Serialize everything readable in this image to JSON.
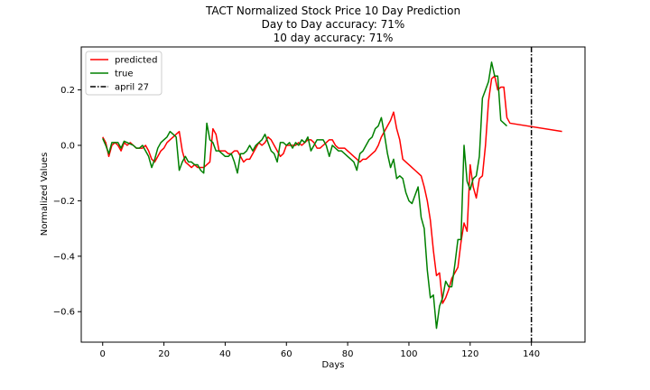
{
  "chart_data": {
    "type": "line",
    "title_lines": [
      "TACT Normalized Stock Price 10 Day Prediction",
      "Day to Day accuracy: 71%",
      "10 day accuracy: 71%"
    ],
    "xlabel": "Days",
    "ylabel": "Normalized Values",
    "xlim": [
      -7,
      157.5
    ],
    "ylim": [
      -0.71,
      0.355
    ],
    "xticks": [
      0,
      20,
      40,
      60,
      80,
      100,
      120,
      140
    ],
    "yticks": [
      -0.6,
      -0.4,
      -0.2,
      0.0,
      0.2
    ],
    "ytick_labels": [
      "−0.6",
      "−0.4",
      "−0.2",
      "0.0",
      "0.2"
    ],
    "grid": false,
    "legend_position": "upper-left",
    "series": [
      {
        "name": "predicted",
        "color": "#ff0000",
        "points": [
          [
            0,
            0.03
          ],
          [
            1,
            0.01
          ],
          [
            2,
            -0.04
          ],
          [
            3,
            0.0
          ],
          [
            4,
            0.01
          ],
          [
            5,
            0.0
          ],
          [
            6,
            -0.02
          ],
          [
            7,
            0.01
          ],
          [
            8,
            0.0
          ],
          [
            9,
            0.01
          ],
          [
            10,
            0.0
          ],
          [
            11,
            -0.01
          ],
          [
            12,
            -0.01
          ],
          [
            13,
            -0.01
          ],
          [
            14,
            0.0
          ],
          [
            15,
            -0.02
          ],
          [
            16,
            -0.05
          ],
          [
            17,
            -0.06
          ],
          [
            18,
            -0.04
          ],
          [
            19,
            -0.02
          ],
          [
            20,
            -0.01
          ],
          [
            21,
            0.01
          ],
          [
            22,
            0.02
          ],
          [
            23,
            0.03
          ],
          [
            24,
            0.04
          ],
          [
            25,
            0.05
          ],
          [
            26,
            -0.02
          ],
          [
            27,
            -0.06
          ],
          [
            28,
            -0.07
          ],
          [
            29,
            -0.08
          ],
          [
            30,
            -0.07
          ],
          [
            31,
            -0.08
          ],
          [
            32,
            -0.08
          ],
          [
            33,
            -0.08
          ],
          [
            34,
            -0.07
          ],
          [
            35,
            -0.06
          ],
          [
            36,
            0.06
          ],
          [
            37,
            0.04
          ],
          [
            38,
            -0.02
          ],
          [
            39,
            -0.02
          ],
          [
            40,
            -0.02
          ],
          [
            41,
            -0.03
          ],
          [
            42,
            -0.03
          ],
          [
            43,
            -0.02
          ],
          [
            44,
            -0.02
          ],
          [
            45,
            -0.04
          ],
          [
            46,
            -0.06
          ],
          [
            47,
            -0.05
          ],
          [
            48,
            -0.05
          ],
          [
            49,
            -0.03
          ],
          [
            50,
            -0.01
          ],
          [
            51,
            0.01
          ],
          [
            52,
            0.0
          ],
          [
            53,
            0.01
          ],
          [
            54,
            0.03
          ],
          [
            55,
            0.02
          ],
          [
            56,
            0.0
          ],
          [
            57,
            -0.02
          ],
          [
            58,
            -0.04
          ],
          [
            59,
            -0.03
          ],
          [
            60,
            0.0
          ],
          [
            61,
            0.0
          ],
          [
            62,
            0.0
          ],
          [
            63,
            0.0
          ],
          [
            64,
            0.01
          ],
          [
            65,
            0.0
          ],
          [
            66,
            0.01
          ],
          [
            67,
            0.02
          ],
          [
            68,
            0.02
          ],
          [
            69,
            0.01
          ],
          [
            70,
            -0.01
          ],
          [
            71,
            -0.01
          ],
          [
            72,
            0.0
          ],
          [
            73,
            0.01
          ],
          [
            74,
            0.02
          ],
          [
            75,
            0.02
          ],
          [
            76,
            0.0
          ],
          [
            77,
            -0.01
          ],
          [
            78,
            -0.01
          ],
          [
            79,
            -0.01
          ],
          [
            80,
            -0.02
          ],
          [
            81,
            -0.03
          ],
          [
            82,
            -0.04
          ],
          [
            83,
            -0.05
          ],
          [
            84,
            -0.06
          ],
          [
            85,
            -0.05
          ],
          [
            86,
            -0.05
          ],
          [
            87,
            -0.04
          ],
          [
            88,
            -0.03
          ],
          [
            89,
            -0.02
          ],
          [
            90,
            0.0
          ],
          [
            91,
            0.03
          ],
          [
            92,
            0.05
          ],
          [
            93,
            0.07
          ],
          [
            94,
            0.09
          ],
          [
            95,
            0.12
          ],
          [
            96,
            0.06
          ],
          [
            97,
            0.02
          ],
          [
            98,
            -0.05
          ],
          [
            99,
            -0.06
          ],
          [
            100,
            -0.07
          ],
          [
            101,
            -0.08
          ],
          [
            102,
            -0.09
          ],
          [
            103,
            -0.1
          ],
          [
            104,
            -0.11
          ],
          [
            105,
            -0.15
          ],
          [
            106,
            -0.2
          ],
          [
            107,
            -0.27
          ],
          [
            108,
            -0.38
          ],
          [
            109,
            -0.47
          ],
          [
            110,
            -0.46
          ],
          [
            111,
            -0.57
          ],
          [
            112,
            -0.55
          ],
          [
            113,
            -0.52
          ],
          [
            114,
            -0.48
          ],
          [
            115,
            -0.46
          ],
          [
            116,
            -0.44
          ],
          [
            117,
            -0.35
          ],
          [
            118,
            -0.28
          ],
          [
            119,
            -0.31
          ],
          [
            120,
            -0.07
          ],
          [
            121,
            -0.15
          ],
          [
            122,
            -0.19
          ],
          [
            123,
            -0.12
          ],
          [
            124,
            -0.11
          ],
          [
            125,
            0.0
          ],
          [
            126,
            0.16
          ],
          [
            127,
            0.24
          ],
          [
            128,
            0.25
          ],
          [
            129,
            0.2
          ],
          [
            130,
            0.21
          ],
          [
            131,
            0.21
          ],
          [
            132,
            0.1
          ],
          [
            133,
            0.08
          ],
          [
            150,
            0.05
          ]
        ]
      },
      {
        "name": "true",
        "color": "#008000",
        "points": [
          [
            0,
            0.025
          ],
          [
            1,
            0.0
          ],
          [
            2,
            -0.03
          ],
          [
            3,
            0.01
          ],
          [
            4,
            0.01
          ],
          [
            5,
            0.01
          ],
          [
            6,
            -0.01
          ],
          [
            7,
            0.015
          ],
          [
            8,
            0.01
          ],
          [
            9,
            0.005
          ],
          [
            10,
            0.0
          ],
          [
            11,
            -0.01
          ],
          [
            12,
            -0.01
          ],
          [
            13,
            0.0
          ],
          [
            14,
            -0.02
          ],
          [
            15,
            -0.04
          ],
          [
            16,
            -0.08
          ],
          [
            17,
            -0.05
          ],
          [
            18,
            -0.01
          ],
          [
            19,
            0.01
          ],
          [
            20,
            0.02
          ],
          [
            21,
            0.03
          ],
          [
            22,
            0.05
          ],
          [
            23,
            0.04
          ],
          [
            24,
            0.03
          ],
          [
            25,
            -0.09
          ],
          [
            26,
            -0.06
          ],
          [
            27,
            -0.04
          ],
          [
            28,
            -0.06
          ],
          [
            29,
            -0.06
          ],
          [
            30,
            -0.07
          ],
          [
            31,
            -0.07
          ],
          [
            32,
            -0.09
          ],
          [
            33,
            -0.1
          ],
          [
            34,
            0.08
          ],
          [
            35,
            0.02
          ],
          [
            36,
            0.01
          ],
          [
            37,
            -0.02
          ],
          [
            38,
            -0.02
          ],
          [
            39,
            -0.03
          ],
          [
            40,
            -0.04
          ],
          [
            41,
            -0.04
          ],
          [
            42,
            -0.03
          ],
          [
            43,
            -0.06
          ],
          [
            44,
            -0.1
          ],
          [
            45,
            -0.03
          ],
          [
            46,
            -0.03
          ],
          [
            47,
            -0.02
          ],
          [
            48,
            0.0
          ],
          [
            49,
            -0.02
          ],
          [
            50,
            0.0
          ],
          [
            51,
            0.01
          ],
          [
            52,
            0.02
          ],
          [
            53,
            0.04
          ],
          [
            54,
            0.01
          ],
          [
            55,
            -0.02
          ],
          [
            56,
            -0.03
          ],
          [
            57,
            -0.06
          ],
          [
            58,
            0.01
          ],
          [
            59,
            0.01
          ],
          [
            60,
            0.0
          ],
          [
            61,
            0.01
          ],
          [
            62,
            -0.01
          ],
          [
            63,
            0.01
          ],
          [
            64,
            0.0
          ],
          [
            65,
            0.02
          ],
          [
            66,
            0.01
          ],
          [
            67,
            0.03
          ],
          [
            68,
            -0.02
          ],
          [
            69,
            0.0
          ],
          [
            70,
            0.02
          ],
          [
            71,
            0.02
          ],
          [
            72,
            0.02
          ],
          [
            73,
            0.0
          ],
          [
            74,
            -0.04
          ],
          [
            75,
            0.0
          ],
          [
            76,
            -0.01
          ],
          [
            77,
            -0.02
          ],
          [
            78,
            -0.02
          ],
          [
            79,
            -0.03
          ],
          [
            80,
            -0.04
          ],
          [
            81,
            -0.05
          ],
          [
            82,
            -0.06
          ],
          [
            83,
            -0.09
          ],
          [
            84,
            -0.03
          ],
          [
            85,
            -0.02
          ],
          [
            86,
            0.0
          ],
          [
            87,
            0.02
          ],
          [
            88,
            0.03
          ],
          [
            89,
            0.06
          ],
          [
            90,
            0.07
          ],
          [
            91,
            0.1
          ],
          [
            92,
            0.04
          ],
          [
            93,
            -0.03
          ],
          [
            94,
            -0.08
          ],
          [
            95,
            -0.05
          ],
          [
            96,
            -0.12
          ],
          [
            97,
            -0.11
          ],
          [
            98,
            -0.12
          ],
          [
            99,
            -0.17
          ],
          [
            100,
            -0.2
          ],
          [
            101,
            -0.21
          ],
          [
            102,
            -0.18
          ],
          [
            103,
            -0.15
          ],
          [
            104,
            -0.26
          ],
          [
            105,
            -0.3
          ],
          [
            106,
            -0.45
          ],
          [
            107,
            -0.55
          ],
          [
            108,
            -0.54
          ],
          [
            109,
            -0.66
          ],
          [
            110,
            -0.58
          ],
          [
            111,
            -0.55
          ],
          [
            112,
            -0.49
          ],
          [
            113,
            -0.51
          ],
          [
            114,
            -0.51
          ],
          [
            115,
            -0.43
          ],
          [
            116,
            -0.34
          ],
          [
            117,
            -0.34
          ],
          [
            118,
            0.0
          ],
          [
            119,
            -0.13
          ],
          [
            120,
            -0.16
          ],
          [
            121,
            -0.12
          ],
          [
            122,
            -0.11
          ],
          [
            123,
            -0.04
          ],
          [
            124,
            0.17
          ],
          [
            125,
            0.2
          ],
          [
            126,
            0.23
          ],
          [
            127,
            0.3
          ],
          [
            128,
            0.25
          ],
          [
            129,
            0.25
          ],
          [
            130,
            0.09
          ],
          [
            131,
            0.08
          ],
          [
            132,
            0.07
          ]
        ]
      }
    ],
    "vline": {
      "name": "april 27",
      "x": 140,
      "color": "#000000",
      "style": "dash-dot"
    }
  }
}
